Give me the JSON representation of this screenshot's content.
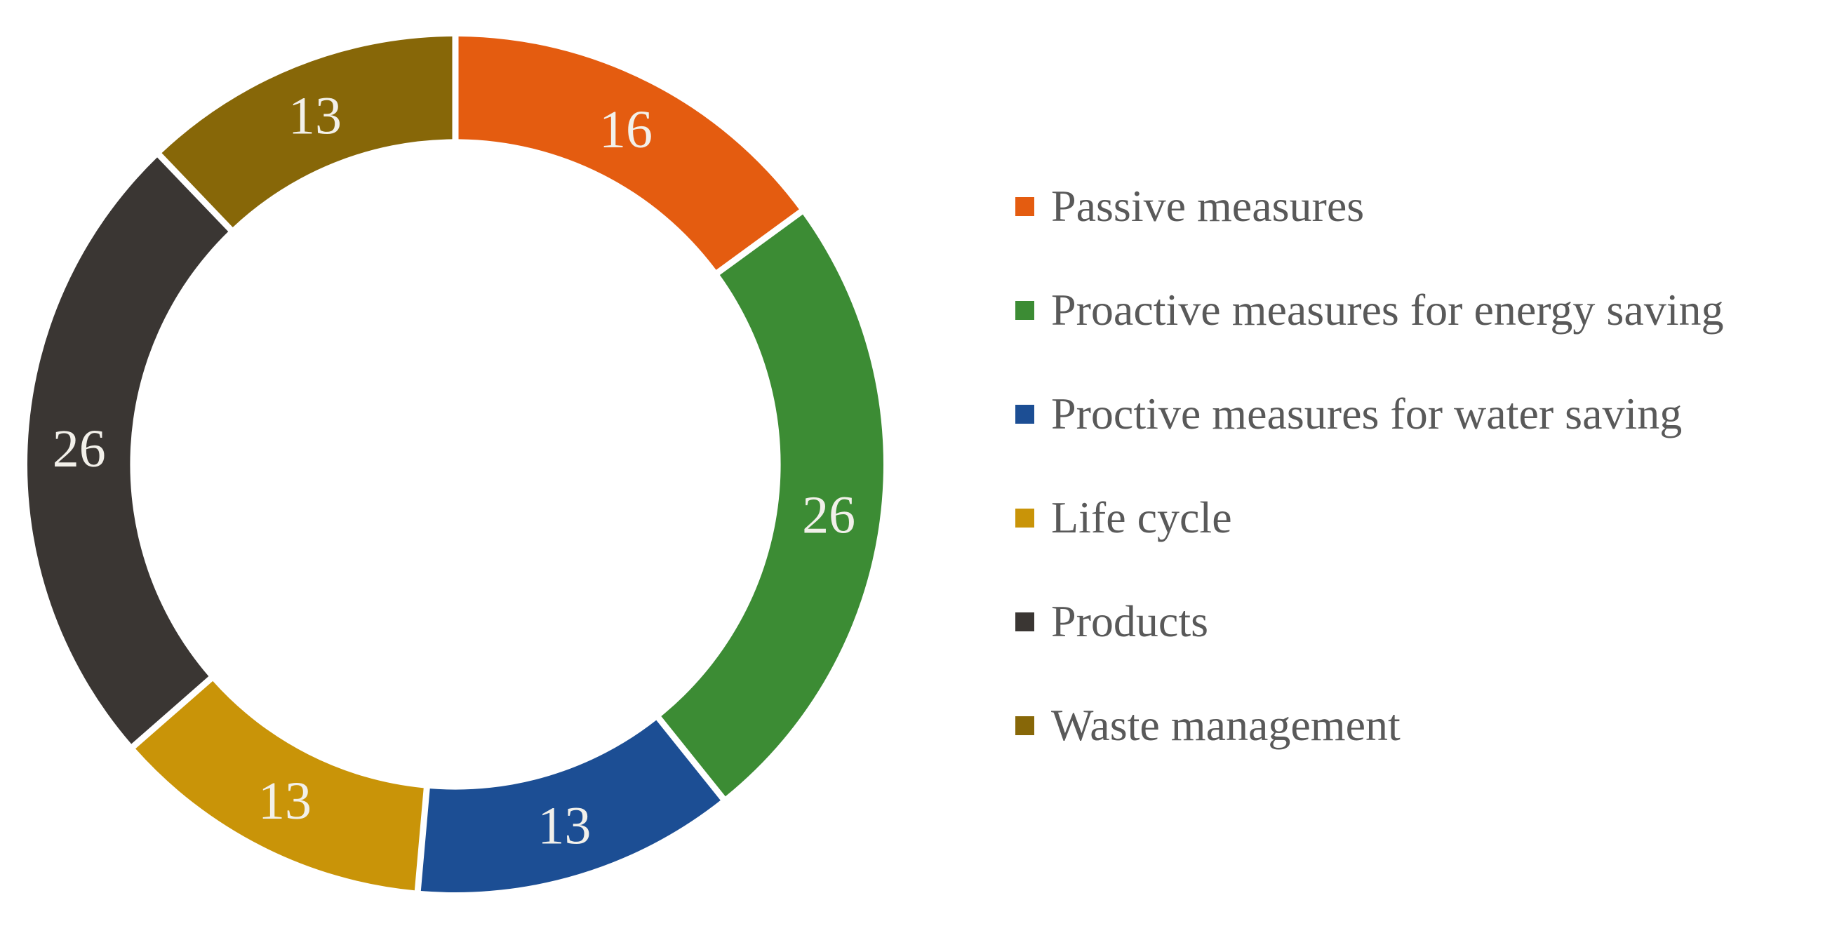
{
  "chart_data": {
    "type": "pie",
    "subtype": "donut",
    "title": "",
    "categories": [
      "Passive measures",
      "Proactive measures for energy saving",
      "Proctive measures for water saving",
      "Life cycle",
      "Products",
      "Waste management"
    ],
    "values": [
      16,
      26,
      13,
      13,
      26,
      13
    ],
    "data_labels": [
      "16",
      "26",
      "13",
      "13",
      "26",
      "13"
    ],
    "colors": [
      "#e45c10",
      "#3c8c34",
      "#1c4e94",
      "#c99408",
      "#3a3633",
      "#876708"
    ],
    "start_angle_deg": 0,
    "direction": "clockwise",
    "inner_radius_ratio": 0.76,
    "segment_gap_color": "#ffffff",
    "data_label_color": "#f2f0ea",
    "legend_position": "right",
    "legend_text_color": "#595959",
    "background_color": "#ffffff"
  }
}
